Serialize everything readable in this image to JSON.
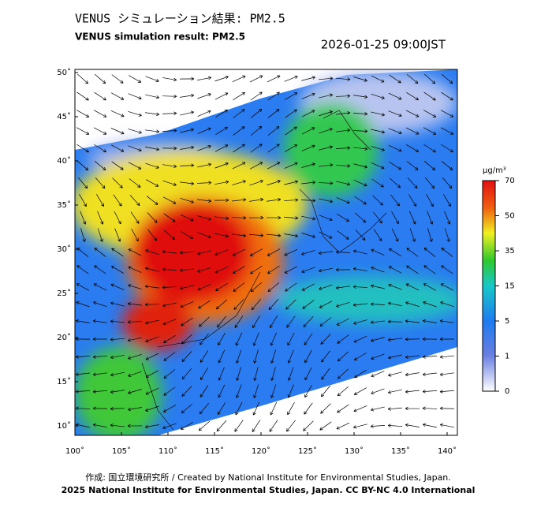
{
  "header": {
    "title_ja": "VENUS シミュレーション結果: PM2.5",
    "title_en": "VENUS simulation result: PM2.5",
    "timestamp": "2026-01-25 09:00JST"
  },
  "map": {
    "lat_ticks": [
      {
        "value": 50,
        "label": "50˚"
      },
      {
        "value": 45,
        "label": "45˚"
      },
      {
        "value": 40,
        "label": "40˚"
      },
      {
        "value": 35,
        "label": "35˚"
      },
      {
        "value": 30,
        "label": "30˚"
      },
      {
        "value": 25,
        "label": "25˚"
      },
      {
        "value": 20,
        "label": "20˚"
      },
      {
        "value": 15,
        "label": "15˚"
      },
      {
        "value": 10,
        "label": "10˚"
      }
    ],
    "lon_ticks": [
      {
        "value": 100,
        "label": "100˚"
      },
      {
        "value": 105,
        "label": "105˚"
      },
      {
        "value": 110,
        "label": "110˚"
      },
      {
        "value": 115,
        "label": "115˚"
      },
      {
        "value": 120,
        "label": "120˚"
      },
      {
        "value": 125,
        "label": "125˚"
      },
      {
        "value": 130,
        "label": "130˚"
      },
      {
        "value": 135,
        "label": "135˚"
      },
      {
        "value": 140,
        "label": "140˚"
      }
    ]
  },
  "colorbar": {
    "unit": "μg/m³",
    "ticks": [
      70,
      50,
      35,
      15,
      5,
      1,
      0
    ]
  },
  "footer": {
    "line1": "作成: 国立環境研究所 / Created by National Institute for Environmental Studies, Japan.",
    "line2": "2025 National Institute for Environmental Studies, Japan. CC BY-NC 4.0 International"
  }
}
